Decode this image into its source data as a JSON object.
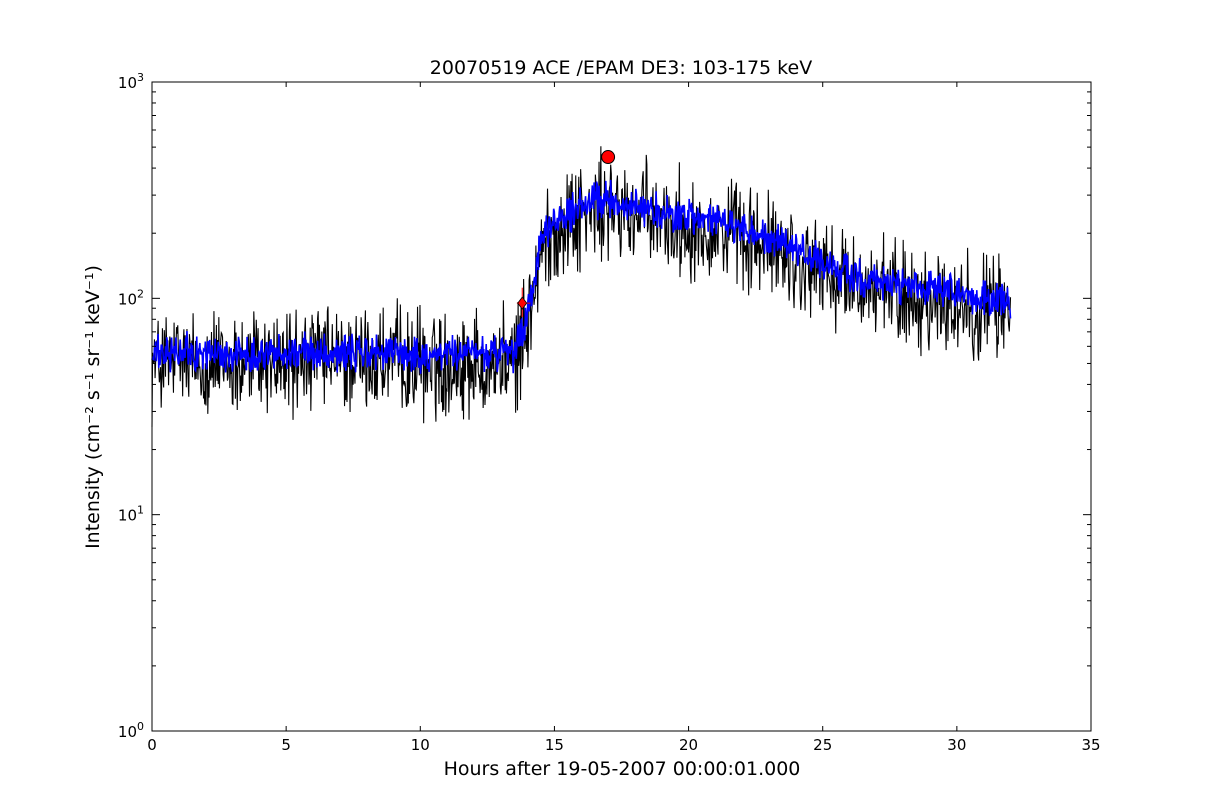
{
  "chart_data": {
    "type": "line",
    "title": "20070519 ACE /EPAM DE3: 103-175 keV",
    "xlabel": "Hours after 19-05-2007 00:00:01.000",
    "ylabel": "Intensity (cm⁻² s⁻¹ sr⁻¹ keV⁻¹)",
    "xlim": [
      0,
      35
    ],
    "ylim": [
      1,
      1000
    ],
    "yscale": "log",
    "grid": false,
    "x_ticks": [
      0,
      5,
      10,
      15,
      20,
      25,
      30,
      35
    ],
    "x_tick_labels": [
      "0",
      "5",
      "10",
      "15",
      "20",
      "25",
      "30",
      "35"
    ],
    "y_ticks": [
      1,
      10,
      100,
      1000
    ],
    "y_tick_labels": [
      {
        "base": "10",
        "exp": "0"
      },
      {
        "base": "10",
        "exp": "1"
      },
      {
        "base": "10",
        "exp": "2"
      },
      {
        "base": "10",
        "exp": "3"
      }
    ],
    "series": [
      {
        "color": "#000000",
        "style": "raw",
        "x": [
          0,
          1,
          2,
          3,
          4,
          5,
          6,
          7,
          8,
          9,
          10,
          11,
          12,
          13,
          13.5,
          14,
          14.5,
          15,
          15.5,
          16,
          16.5,
          17,
          17.5,
          18,
          18.5,
          19,
          20,
          21,
          22,
          23,
          24,
          25,
          26,
          27,
          28,
          29,
          30,
          31,
          32
        ],
        "y": [
          55,
          57,
          56,
          55,
          57,
          56,
          58,
          57,
          56,
          57,
          55,
          56,
          57,
          56,
          55,
          85,
          180,
          230,
          250,
          270,
          280,
          290,
          280,
          270,
          260,
          250,
          240,
          230,
          210,
          190,
          170,
          145,
          130,
          120,
          115,
          110,
          105,
          100,
          100
        ],
        "noise_range": [
          0.45,
          1.8
        ]
      },
      {
        "color": "#0000ff",
        "style": "smoothed",
        "x": [
          0,
          1,
          2,
          3,
          4,
          5,
          6,
          7,
          8,
          9,
          10,
          11,
          12,
          13,
          13.5,
          14,
          14.5,
          15,
          15.5,
          16,
          16.5,
          17,
          17.5,
          18,
          18.5,
          19,
          20,
          21,
          22,
          23,
          24,
          25,
          26,
          27,
          28,
          29,
          30,
          31,
          32
        ],
        "y": [
          55,
          57,
          56,
          55,
          57,
          56,
          58,
          57,
          56,
          57,
          55,
          56,
          57,
          56,
          55,
          85,
          180,
          230,
          250,
          270,
          280,
          290,
          280,
          270,
          260,
          250,
          240,
          230,
          210,
          190,
          170,
          145,
          130,
          120,
          115,
          110,
          105,
          100,
          100
        ],
        "noise_range": [
          0.78,
          1.25
        ]
      }
    ],
    "markers": [
      {
        "x": 13.8,
        "y": 95,
        "color": "#ff0000",
        "shape": "diamond",
        "error_x": [
          13.6,
          14.1
        ],
        "error_y": [
          82,
          112
        ]
      },
      {
        "x": 17.0,
        "y": 450,
        "color": "#ff0000",
        "shape": "circle"
      }
    ]
  }
}
